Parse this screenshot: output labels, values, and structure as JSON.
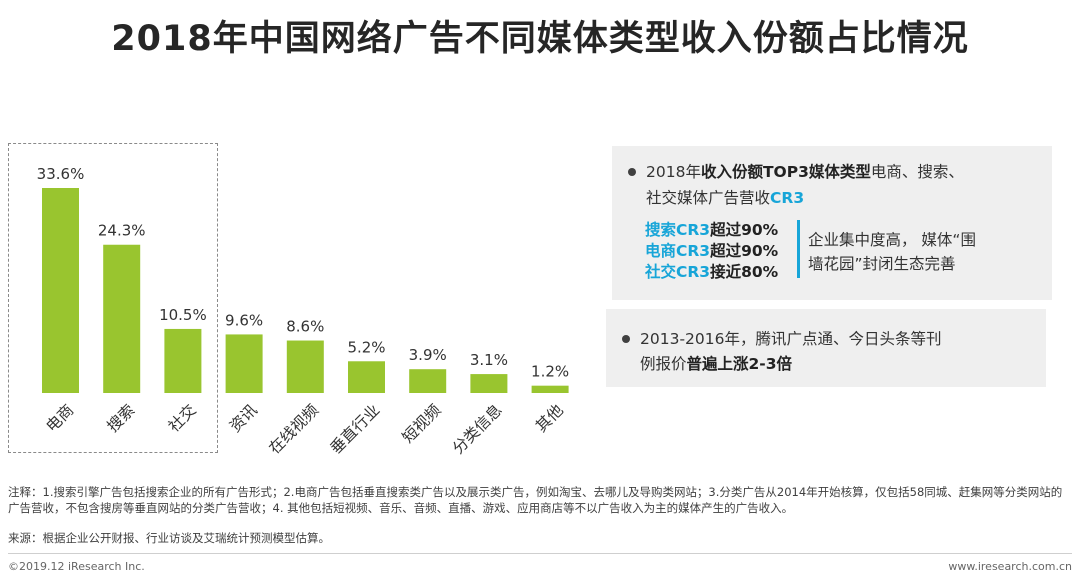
{
  "title": "2018年中国网络广告不同媒体类型收入份额占比情况",
  "chart_data": {
    "type": "bar",
    "title": "2018年中国网络广告不同媒体类型收入份额占比情况",
    "categories": [
      "电商",
      "搜索",
      "社交",
      "资讯",
      "在线视频",
      "垂直行业",
      "短视频",
      "分类信息",
      "其他"
    ],
    "values": [
      33.6,
      24.3,
      10.5,
      9.6,
      8.6,
      5.2,
      3.9,
      3.1,
      1.2
    ],
    "value_labels": [
      "33.6%",
      "24.3%",
      "10.5%",
      "9.6%",
      "8.6%",
      "5.2%",
      "3.9%",
      "3.1%",
      "1.2%"
    ],
    "unit": "%",
    "ylim": [
      0,
      36
    ],
    "bar_color": "#99c52f",
    "grid": false
  },
  "panel1": {
    "line1_prefix": "2018年",
    "line1_bold": "收入份额TOP3媒体类型",
    "line1_suffix": "电商、搜索、",
    "line2_text": "社交媒体广告营收",
    "line2_blue": "CR3",
    "cr_rows": [
      {
        "label": "搜索CR3",
        "value": "超过90%"
      },
      {
        "label": "电商CR3",
        "value": "超过90%"
      },
      {
        "label": "社交CR3",
        "value": "接近80%"
      }
    ],
    "conclusion_line1": "企业集中度高，  媒体“围",
    "conclusion_line2": "墙花园”封闭生态完善"
  },
  "panel2": {
    "line1": "2013-2016年，腾讯广点通、今日头条等刊",
    "line2_prefix": "例报价",
    "line2_bold": "普遍上涨2-3倍"
  },
  "note": "注释：1.搜索引擎广告包括搜索企业的所有广告形式；2.电商广告包括垂直搜索类广告以及展示类广告，例如淘宝、去哪儿及导购类网站；3.分类广告从2014年开始核算，仅包括58同城、赶集网等分类网站的广告营收，不包含搜房等垂直网站的分类广告营收；4. 其他包括短视频、音乐、音频、直播、游戏、应用商店等不以广告收入为主的媒体产生的广告收入。",
  "source": "来源：根据企业公开财报、行业访谈及艾瑞统计预测模型估算。",
  "footer_left": "©2019.12 iResearch Inc.",
  "footer_right": "www.iresearch.com.cn",
  "colors": {
    "accent": "#17a5d8",
    "bar": "#99c52f",
    "panel_bg": "#efefef"
  }
}
